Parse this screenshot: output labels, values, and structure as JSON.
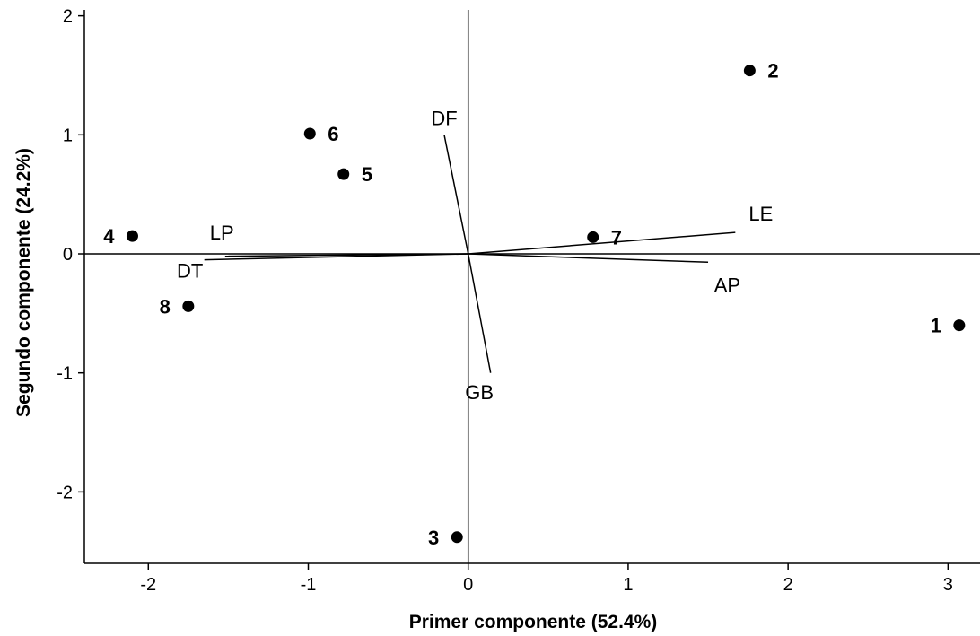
{
  "chart_data": {
    "type": "scatter",
    "title": "",
    "xlabel": "Primer componente (52.4%)",
    "ylabel": "Segundo componente (24.2%)",
    "xlim": [
      -2.4,
      3.2
    ],
    "ylim": [
      -2.6,
      2.05
    ],
    "xticks": [
      -2,
      -1,
      0,
      1,
      2,
      3
    ],
    "yticks": [
      -2,
      -1,
      0,
      1,
      2
    ],
    "xtick_labels": [
      "-2",
      "-1",
      "0",
      "1",
      "2",
      "3"
    ],
    "ytick_labels": [
      "-2",
      "-1",
      "0",
      "1",
      "2"
    ],
    "reference_lines": {
      "x": 0,
      "y": 0
    },
    "grid": false,
    "points": [
      {
        "label": "1",
        "x": 3.07,
        "y": -0.6,
        "label_side": "left"
      },
      {
        "label": "2",
        "x": 1.76,
        "y": 1.54,
        "label_side": "right"
      },
      {
        "label": "3",
        "x": -0.07,
        "y": -2.38,
        "label_side": "left"
      },
      {
        "label": "4",
        "x": -2.1,
        "y": 0.15,
        "label_side": "left"
      },
      {
        "label": "5",
        "x": -0.78,
        "y": 0.67,
        "label_side": "right"
      },
      {
        "label": "6",
        "x": -0.99,
        "y": 1.01,
        "label_side": "right"
      },
      {
        "label": "7",
        "x": 0.78,
        "y": 0.14,
        "label_side": "right"
      },
      {
        "label": "8",
        "x": -1.75,
        "y": -0.44,
        "label_side": "left"
      }
    ],
    "vectors": [
      {
        "label": "DF",
        "x": -0.15,
        "y": 1.0,
        "label_x": -0.15,
        "label_y": 1.14
      },
      {
        "label": "GB",
        "x": 0.14,
        "y": -1.0,
        "label_x": 0.07,
        "label_y": -1.16
      },
      {
        "label": "LE",
        "x": 1.67,
        "y": 0.18,
        "label_x": 1.83,
        "label_y": 0.34
      },
      {
        "label": "AP",
        "x": 1.5,
        "y": -0.07,
        "label_x": 1.62,
        "label_y": -0.26
      },
      {
        "label": "LP",
        "x": -1.52,
        "y": -0.02,
        "label_x": -1.54,
        "label_y": 0.18
      },
      {
        "label": "DT",
        "x": -1.65,
        "y": -0.05,
        "label_x": -1.74,
        "label_y": -0.14
      }
    ]
  }
}
